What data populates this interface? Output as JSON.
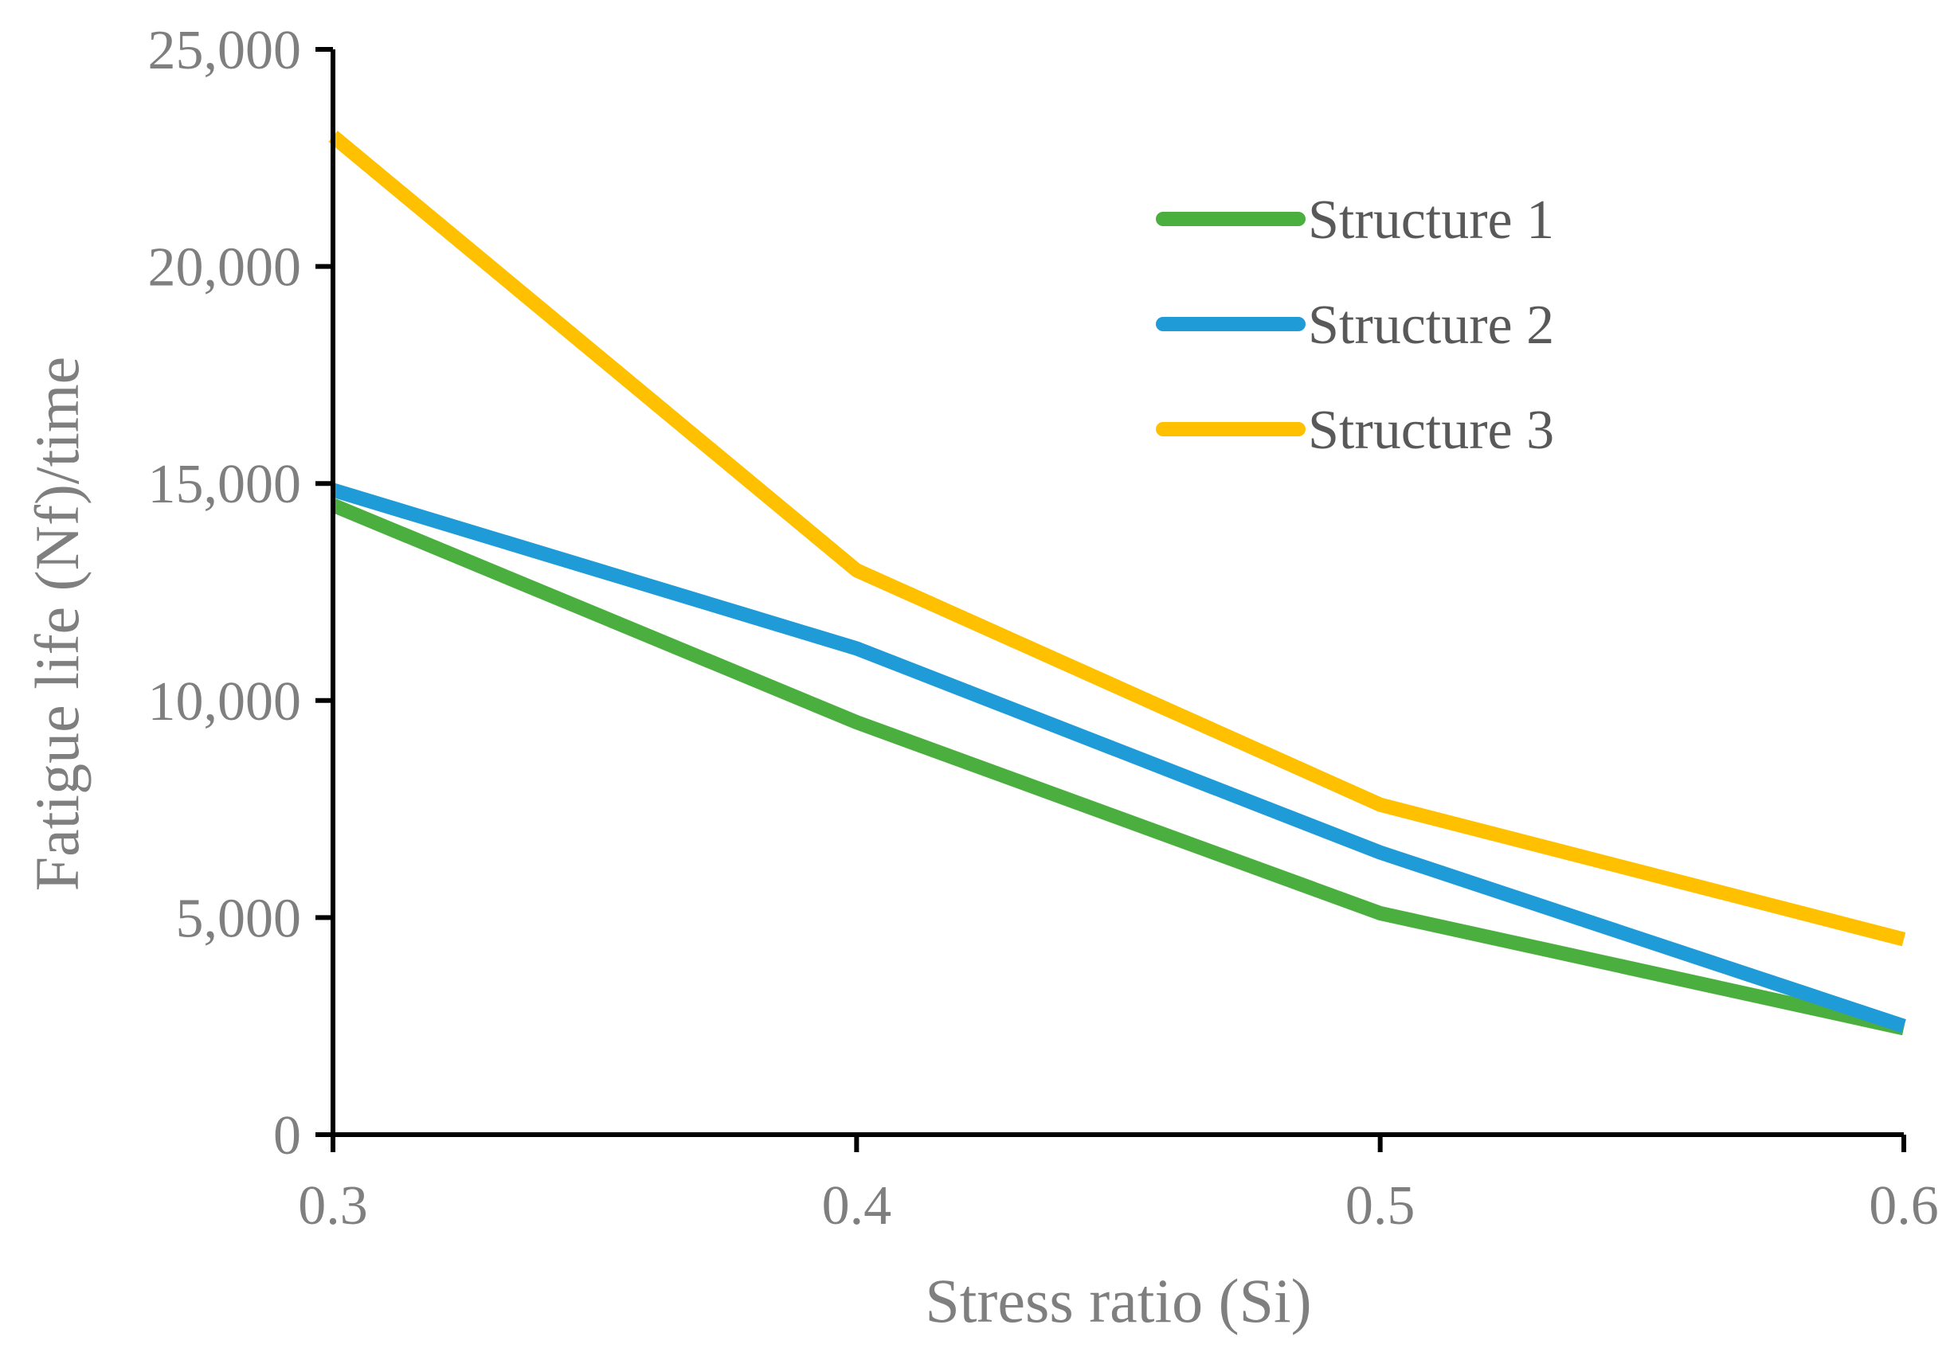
{
  "chart_data": {
    "type": "line",
    "title": "",
    "xlabel": "Stress ratio (Si)",
    "ylabel": "Fatigue life (Nf)/time",
    "x": [
      0.3,
      0.4,
      0.5,
      0.6
    ],
    "x_tick_labels": [
      "0.3",
      "0.4",
      "0.5",
      "0.6"
    ],
    "xlim": [
      0.3,
      0.6
    ],
    "ylim": [
      0,
      25000
    ],
    "y_ticks": [
      0,
      5000,
      10000,
      15000,
      20000,
      25000
    ],
    "y_tick_labels": [
      "0",
      "5,000",
      "10,000",
      "15,000",
      "20,000",
      "25,000"
    ],
    "grid": false,
    "legend_position": "top-right",
    "series": [
      {
        "name": "Structure 1",
        "color": "#4aaf3e",
        "values": [
          14500,
          9500,
          5100,
          2450
        ]
      },
      {
        "name": "Structure 2",
        "color": "#1f9bd7",
        "values": [
          14850,
          11200,
          6500,
          2500
        ]
      },
      {
        "name": "Structure 3",
        "color": "#ffc000",
        "values": [
          23000,
          13000,
          7600,
          4500
        ]
      }
    ]
  }
}
